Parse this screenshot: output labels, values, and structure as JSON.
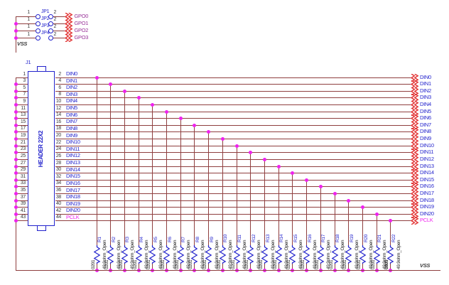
{
  "jumper_block": {
    "refs": [
      "JP1",
      "JP2",
      "JP3",
      "JP4"
    ],
    "left_pin_number": "1",
    "right_pin_number": "2",
    "port_labels": [
      "GPO0",
      "GPO1",
      "GPO2",
      "GPO3"
    ],
    "net_label": "VSS"
  },
  "header": {
    "ref": "J1",
    "part_name": "HEADER 22X2",
    "left_pin_numbers": [
      "1",
      "3",
      "5",
      "7",
      "9",
      "11",
      "13",
      "15",
      "17",
      "19",
      "21",
      "23",
      "25",
      "27",
      "29",
      "31",
      "33",
      "35",
      "37",
      "39",
      "41",
      "43"
    ],
    "right_pin_numbers": [
      "2",
      "4",
      "6",
      "8",
      "10",
      "12",
      "14",
      "16",
      "18",
      "20",
      "22",
      "24",
      "26",
      "28",
      "30",
      "32",
      "34",
      "36",
      "38",
      "40",
      "42",
      "44"
    ],
    "signal_labels": [
      "DIN0",
      "DIN1",
      "DIN2",
      "DIN3",
      "DIN4",
      "DIN5",
      "DIN6",
      "DIN7",
      "DIN8",
      "DIN9",
      "DIN10",
      "DIN11",
      "DIN12",
      "DIN13",
      "DIN14",
      "DIN15",
      "DIN16",
      "DIN17",
      "DIN18",
      "DIN19",
      "DIN20",
      "PCLK"
    ]
  },
  "resistors": {
    "refs": [
      "R1",
      "R2",
      "R3",
      "R4",
      "R5",
      "R6",
      "R7",
      "R8",
      "R9",
      "R10",
      "R11",
      "R12",
      "R13",
      "R14",
      "R15",
      "R16",
      "R17",
      "R18",
      "R19",
      "R20",
      "R21",
      "R22"
    ],
    "value": "49.9ohm_Open",
    "footprints": [
      "0201",
      "0201",
      "0201",
      "0201",
      "0201",
      "0201",
      "0201",
      "0201",
      "0201",
      "0201",
      "0201",
      "0201",
      "0201",
      "0201",
      "0201",
      "0201",
      "0201",
      "0201",
      "0201",
      "0201",
      "0201",
      "0805"
    ]
  },
  "bottom_net_label": "VSS",
  "colors": {
    "wire": "#8f3f3f",
    "component_blue": "#2222cc",
    "junction_dot": "#ee22ee",
    "port_arrow_red": "#e23333",
    "gpo_label_purple": "#993399",
    "pclk_magenta": "#ee22ee",
    "annotation_dark": "#3a3a3a"
  }
}
